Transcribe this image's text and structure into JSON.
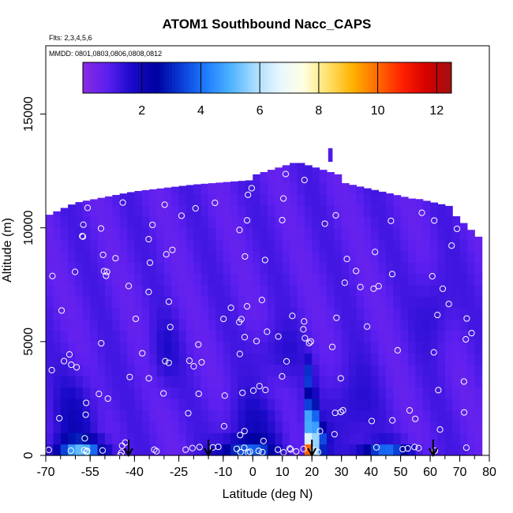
{
  "chart_data": {
    "type": "heatmap",
    "title": "ATOM1 Southbound Nacc_CAPS",
    "subtitle_flights": "Flts: 2,3,4,5,6",
    "subtitle_dates": "MMDD: 0801,0803,0806,0808,0812",
    "xlabel": "Latitude (deg N)",
    "ylabel": "Altitude (m)",
    "xlim": [
      -70,
      80
    ],
    "ylim": [
      0,
      18000
    ],
    "x_ticks_major": [
      -70,
      -55,
      -40,
      -25,
      -10,
      0,
      10,
      20,
      30,
      40,
      50,
      60,
      70,
      80
    ],
    "x_tick_labels": [
      "-70",
      "-55",
      "-40",
      "-25",
      "-10",
      "0",
      "10",
      "20",
      "30",
      "40",
      "50",
      "60",
      "70",
      "80"
    ],
    "y_ticks": [
      0,
      5000,
      10000,
      15000
    ],
    "y_tick_labels": [
      "0",
      "5000",
      "10000",
      "15000"
    ],
    "colorbar": {
      "min": 0,
      "max": 12.5,
      "ticks": [
        2,
        4,
        6,
        8,
        10,
        12
      ],
      "tick_labels": [
        "2",
        "4",
        "6",
        "8",
        "10",
        "12"
      ],
      "colors": [
        "#8a2be2",
        "#5b1ff0",
        "#1a0ac8",
        "#0000a0",
        "#0a3cd6",
        "#1e7cff",
        "#4cb2ff",
        "#a8dcff",
        "#e8f6ff",
        "#ffffe0",
        "#ffe066",
        "#ffb000",
        "#ff6a00",
        "#ff2000",
        "#d40000",
        "#a01010"
      ]
    },
    "arrow_latitudes": [
      -42,
      -15,
      20,
      61
    ]
  }
}
